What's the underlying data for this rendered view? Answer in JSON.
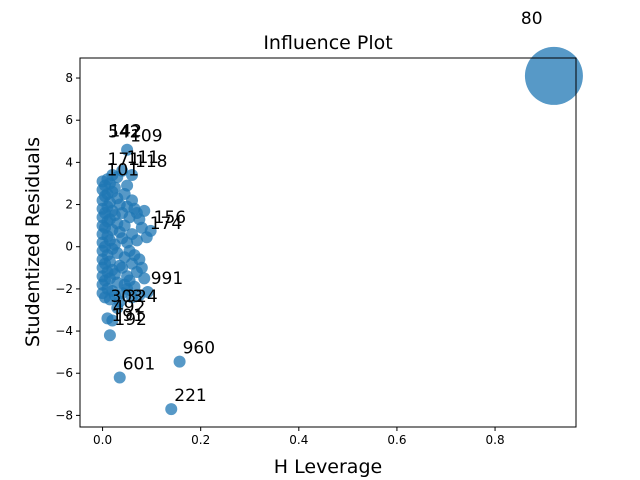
{
  "chart_data": {
    "type": "scatter",
    "title": "Influence Plot",
    "xlabel": "H Leverage",
    "ylabel": "Studentized Residuals",
    "xlim": [
      -0.046,
      0.965
    ],
    "ylim": [
      -8.55,
      8.95
    ],
    "x_ticks": [
      0.0,
      0.2,
      0.4,
      0.6,
      0.8
    ],
    "x_tick_labels": [
      "0.0",
      "0.2",
      "0.4",
      "0.6",
      "0.8"
    ],
    "y_ticks": [
      -8,
      -6,
      -4,
      -2,
      0,
      2,
      4,
      6,
      8
    ],
    "y_tick_labels": [
      "−8",
      "−6",
      "−4",
      "−2",
      "0",
      "2",
      "4",
      "6",
      "8"
    ],
    "grid": false,
    "point_color": "#1f77b4",
    "labeled_points": [
      {
        "label": "80",
        "x": 0.92,
        "y": 8.1,
        "size": "large"
      },
      {
        "label": "542",
        "x": 0.005,
        "y": 4.8
      },
      {
        "label": "142",
        "x": 0.008,
        "y": 4.85
      },
      {
        "label": "109",
        "x": 0.05,
        "y": 4.6
      },
      {
        "label": "171",
        "x": 0.004,
        "y": 3.5
      },
      {
        "label": "111",
        "x": 0.043,
        "y": 3.6
      },
      {
        "label": "101",
        "x": 0.002,
        "y": 3.0
      },
      {
        "label": "118",
        "x": 0.06,
        "y": 3.4
      },
      {
        "label": "156",
        "x": 0.098,
        "y": 0.75
      },
      {
        "label": "174",
        "x": 0.09,
        "y": 0.45
      },
      {
        "label": "991",
        "x": 0.092,
        "y": -2.15
      },
      {
        "label": "303",
        "x": 0.01,
        "y": -3.0
      },
      {
        "label": "324",
        "x": 0.04,
        "y": -3.0
      },
      {
        "label": "492",
        "x": 0.015,
        "y": -3.5
      },
      {
        "label": "191",
        "x": 0.012,
        "y": -3.9
      },
      {
        "label": "192",
        "x": 0.018,
        "y": -4.1
      },
      {
        "label": "960",
        "x": 0.157,
        "y": -5.45
      },
      {
        "label": "601",
        "x": 0.035,
        "y": -6.2
      },
      {
        "label": "221",
        "x": 0.14,
        "y": -7.7
      }
    ],
    "points": [
      [
        0.0,
        3.1
      ],
      [
        0.0,
        2.7
      ],
      [
        0.0,
        2.2
      ],
      [
        0.0,
        1.8
      ],
      [
        0.0,
        1.4
      ],
      [
        0.0,
        1.0
      ],
      [
        0.0,
        0.6
      ],
      [
        0.0,
        0.2
      ],
      [
        0.0,
        -0.2
      ],
      [
        0.0,
        -0.6
      ],
      [
        0.0,
        -1.0
      ],
      [
        0.0,
        -1.4
      ],
      [
        0.0,
        -1.8
      ],
      [
        0.0,
        -2.2
      ],
      [
        0.005,
        2.9
      ],
      [
        0.005,
        2.4
      ],
      [
        0.005,
        1.6
      ],
      [
        0.005,
        0.9
      ],
      [
        0.005,
        0.0
      ],
      [
        0.005,
        -0.8
      ],
      [
        0.005,
        -1.6
      ],
      [
        0.005,
        -2.4
      ],
      [
        0.01,
        3.2
      ],
      [
        0.01,
        2.5
      ],
      [
        0.01,
        1.9
      ],
      [
        0.01,
        1.2
      ],
      [
        0.01,
        0.5
      ],
      [
        0.01,
        -0.4
      ],
      [
        0.01,
        -1.2
      ],
      [
        0.01,
        -2.0
      ],
      [
        0.01,
        -3.4
      ],
      [
        0.015,
        3.0
      ],
      [
        0.015,
        2.1
      ],
      [
        0.015,
        1.3
      ],
      [
        0.015,
        0.3
      ],
      [
        0.015,
        -0.7
      ],
      [
        0.015,
        -1.5
      ],
      [
        0.015,
        -2.5
      ],
      [
        0.015,
        -4.2
      ],
      [
        0.02,
        3.4
      ],
      [
        0.02,
        2.6
      ],
      [
        0.02,
        1.7
      ],
      [
        0.02,
        0.8
      ],
      [
        0.02,
        -0.1
      ],
      [
        0.02,
        -1.1
      ],
      [
        0.02,
        -2.1
      ],
      [
        0.02,
        -3.5
      ],
      [
        0.025,
        2.8
      ],
      [
        0.025,
        1.5
      ],
      [
        0.025,
        0.1
      ],
      [
        0.025,
        -1.3
      ],
      [
        0.025,
        -2.3
      ],
      [
        0.03,
        3.3
      ],
      [
        0.03,
        2.3
      ],
      [
        0.03,
        1.1
      ],
      [
        0.03,
        -0.3
      ],
      [
        0.03,
        -1.7
      ],
      [
        0.03,
        -2.9
      ],
      [
        0.035,
        2.0
      ],
      [
        0.035,
        0.7
      ],
      [
        0.035,
        -0.9
      ],
      [
        0.035,
        -2.6
      ],
      [
        0.035,
        -6.2
      ],
      [
        0.04,
        3.6
      ],
      [
        0.04,
        1.6
      ],
      [
        0.04,
        0.4
      ],
      [
        0.04,
        -1.0
      ],
      [
        0.04,
        -2.2
      ],
      [
        0.045,
        2.5
      ],
      [
        0.045,
        1.0
      ],
      [
        0.045,
        -0.5
      ],
      [
        0.045,
        -1.8
      ],
      [
        0.05,
        4.6
      ],
      [
        0.05,
        2.9
      ],
      [
        0.05,
        1.9
      ],
      [
        0.05,
        0.2
      ],
      [
        0.05,
        -1.4
      ],
      [
        0.05,
        -2.0
      ],
      [
        0.055,
        1.4
      ],
      [
        0.055,
        -0.2
      ],
      [
        0.055,
        -1.6
      ],
      [
        0.06,
        3.4
      ],
      [
        0.06,
        2.2
      ],
      [
        0.06,
        0.6
      ],
      [
        0.06,
        -0.8
      ],
      [
        0.06,
        -2.4
      ],
      [
        0.065,
        1.8
      ],
      [
        0.065,
        -0.4
      ],
      [
        0.065,
        -1.9
      ],
      [
        0.07,
        1.6
      ],
      [
        0.07,
        0.3
      ],
      [
        0.07,
        -1.2
      ],
      [
        0.075,
        1.3
      ],
      [
        0.075,
        -0.6
      ],
      [
        0.075,
        -2.3
      ],
      [
        0.08,
        0.9
      ],
      [
        0.08,
        -1.0
      ],
      [
        0.085,
        1.7
      ],
      [
        0.085,
        -1.5
      ],
      [
        0.09,
        0.45
      ],
      [
        0.092,
        -2.15
      ],
      [
        0.098,
        0.75
      ],
      [
        0.14,
        -7.7
      ],
      [
        0.157,
        -5.45
      ],
      [
        0.92,
        8.1
      ]
    ]
  }
}
